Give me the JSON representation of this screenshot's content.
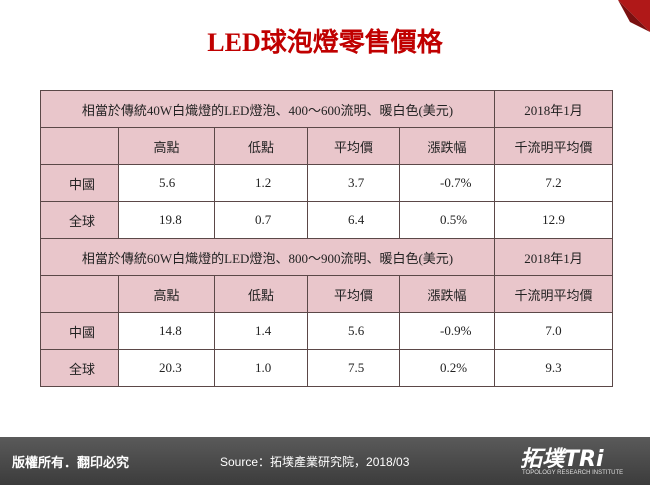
{
  "title": "LED球泡燈零售價格",
  "tables": [
    {
      "caption": "相當於傳統40W白熾燈的LED燈泡、400～600流明、暖白色(美元)",
      "date": "2018年1月",
      "columns": [
        "高點",
        "低點",
        "平均價",
        "漲跌幅",
        "千流明平均價"
      ],
      "rows": [
        [
          "中國",
          "5.6",
          "1.2",
          "3.7",
          "-0.7%",
          "7.2"
        ],
        [
          "全球",
          "19.8",
          "0.7",
          "6.4",
          "0.5%",
          "12.9"
        ]
      ]
    },
    {
      "caption": "相當於傳統60W白熾燈的LED燈泡、800～900流明、暖白色(美元)",
      "date": "2018年1月",
      "columns": [
        "高點",
        "低點",
        "平均價",
        "漲跌幅",
        "千流明平均價"
      ],
      "rows": [
        [
          "中國",
          "14.8",
          "1.4",
          "5.6",
          "-0.9%",
          "7.0"
        ],
        [
          "全球",
          "20.3",
          "1.0",
          "7.5",
          "0.2%",
          "9.3"
        ]
      ]
    }
  ],
  "footer": {
    "copyright": "版權所有．翻印必究",
    "source": "Source：拓墣產業研究院，2018/03",
    "logo": "拓墣TRi",
    "logo_subtitle": "TOPOLOGY RESEARCH INSTITUTE"
  }
}
